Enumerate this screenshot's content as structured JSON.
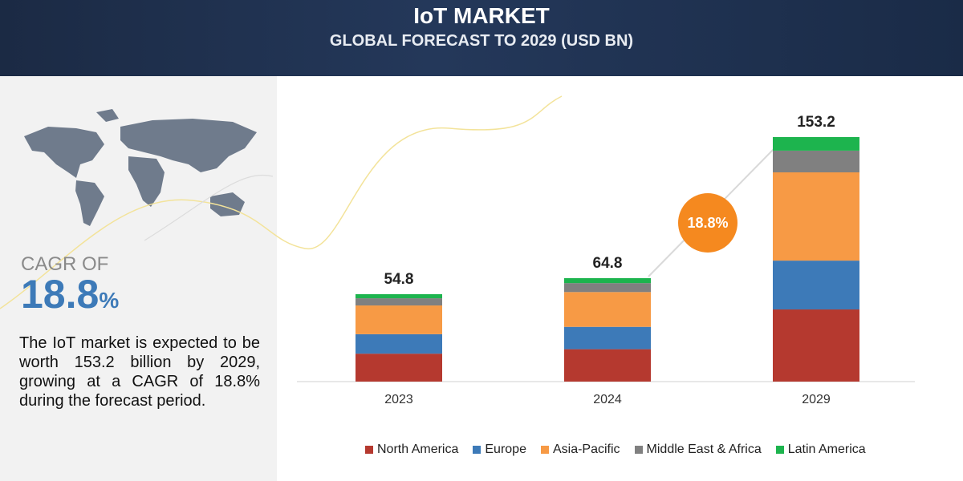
{
  "chart_data": {
    "type": "bar",
    "stacked": true,
    "title": "IoT MARKET",
    "subtitle": "GLOBAL FORECAST TO 2029 (USD BN)",
    "categories": [
      "2023",
      "2024",
      "2029"
    ],
    "series": [
      {
        "name": "North America",
        "color": "#b5392f",
        "values": [
          17.5,
          20.3,
          45.2
        ]
      },
      {
        "name": "Europe",
        "color": "#3d7ab8",
        "values": [
          12.2,
          14.0,
          30.6
        ]
      },
      {
        "name": "Asia-Pacific",
        "color": "#f79a45",
        "values": [
          18.0,
          21.8,
          55.3
        ]
      },
      {
        "name": "Middle East & Africa",
        "color": "#808080",
        "values": [
          4.5,
          5.6,
          13.6
        ]
      },
      {
        "name": "Latin America",
        "color": "#1db44e",
        "values": [
          2.6,
          3.1,
          8.5
        ]
      }
    ],
    "totals": [
      54.8,
      64.8,
      153.2
    ],
    "cagr_bubble": "18.8%",
    "cagr_heading": "CAGR OF",
    "cagr_value": 18.8,
    "cagr_unit": "%",
    "description": "The IoT market is expected to be worth 153.2 billion by 2029, growing at a CAGR of 18.8% during the forecast period.",
    "legend": "bottom"
  }
}
